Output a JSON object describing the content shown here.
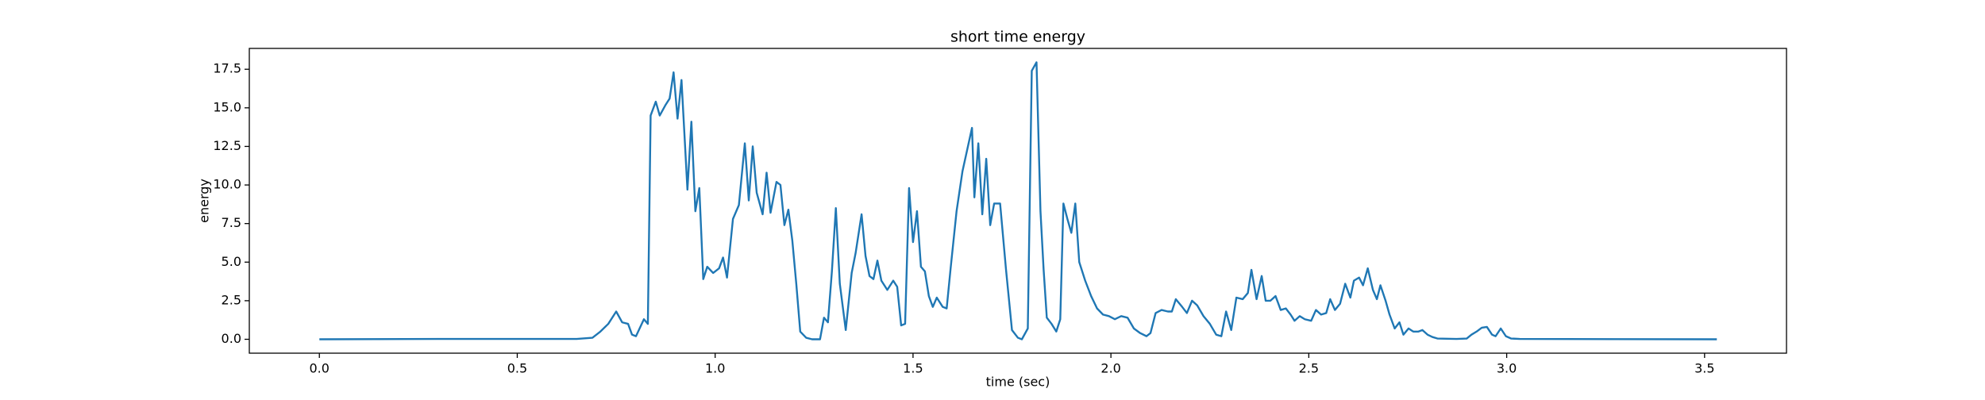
{
  "chart_data": {
    "type": "line",
    "title": "short time energy",
    "x_label": "time (sec)",
    "y_label": "energy",
    "color": "#1f77b4",
    "grid": false,
    "xlim": [
      -0.177,
      3.707
    ],
    "ylim": [
      -0.9,
      18.85
    ],
    "xticks": [
      {
        "value": 0,
        "label": "0.0"
      },
      {
        "value": 0.5,
        "label": "0.5"
      },
      {
        "value": 1,
        "label": "1.0"
      },
      {
        "value": 1.5,
        "label": "1.5"
      },
      {
        "value": 2,
        "label": "2.0"
      },
      {
        "value": 2.5,
        "label": "2.5"
      },
      {
        "value": 3,
        "label": "3.0"
      },
      {
        "value": 3.5,
        "label": "3.5"
      }
    ],
    "yticks": [
      {
        "value": 0,
        "label": "0.0"
      },
      2.5,
      {
        "value": 5,
        "label": "5.0"
      },
      7.5,
      {
        "value": 10,
        "label": "10.0"
      },
      12.5,
      {
        "value": 15,
        "label": "15.0"
      },
      17.5
    ],
    "x": [
      0,
      0.3,
      0.65,
      0.69,
      0.71,
      0.73,
      0.75,
      0.765,
      0.78,
      0.79,
      0.8,
      0.82,
      0.83,
      0.837,
      0.85,
      0.86,
      0.875,
      0.885,
      0.895,
      0.905,
      0.915,
      0.93,
      0.94,
      0.95,
      0.96,
      0.97,
      0.98,
      0.995,
      1.01,
      1.02,
      1.03,
      1.045,
      1.06,
      1.075,
      1.085,
      1.095,
      1.105,
      1.12,
      1.13,
      1.14,
      1.155,
      1.165,
      1.175,
      1.185,
      1.195,
      1.205,
      1.215,
      1.23,
      1.245,
      1.265,
      1.275,
      1.285,
      1.295,
      1.305,
      1.315,
      1.33,
      1.345,
      1.355,
      1.37,
      1.38,
      1.39,
      1.4,
      1.41,
      1.42,
      1.435,
      1.45,
      1.46,
      1.47,
      1.48,
      1.49,
      1.5,
      1.51,
      1.52,
      1.53,
      1.54,
      1.55,
      1.56,
      1.575,
      1.585,
      1.595,
      1.61,
      1.625,
      1.649,
      1.655,
      1.665,
      1.675,
      1.685,
      1.695,
      1.705,
      1.72,
      1.735,
      1.75,
      1.765,
      1.775,
      1.79,
      1.8,
      1.812,
      1.822,
      1.83,
      1.838,
      1.85,
      1.862,
      1.872,
      1.88,
      1.89,
      1.9,
      1.91,
      1.92,
      1.935,
      1.95,
      1.965,
      1.98,
      1.995,
      2.01,
      2.026,
      2.042,
      2.058,
      2.074,
      2.09,
      2.1,
      2.113,
      2.128,
      2.144,
      2.154,
      2.164,
      2.18,
      2.192,
      2.205,
      2.218,
      2.234,
      2.25,
      2.266,
      2.279,
      2.291,
      2.304,
      2.317,
      2.333,
      2.346,
      2.355,
      2.368,
      2.381,
      2.391,
      2.403,
      2.416,
      2.429,
      2.442,
      2.454,
      2.464,
      2.477,
      2.49,
      2.506,
      2.518,
      2.531,
      2.544,
      2.554,
      2.566,
      2.579,
      2.592,
      2.605,
      2.614,
      2.627,
      2.637,
      2.649,
      2.662,
      2.672,
      2.681,
      2.694,
      2.704,
      2.717,
      2.729,
      2.739,
      2.752,
      2.764,
      2.777,
      2.787,
      2.8,
      2.812,
      2.825,
      2.873,
      2.899,
      2.911,
      2.924,
      2.937,
      2.95,
      2.963,
      2.972,
      2.985,
      2.998,
      3.011,
      3.033,
      3.531
    ],
    "values": [
      0,
      0.02,
      0.02,
      0.1,
      0.5,
      1.0,
      1.8,
      1.1,
      1.0,
      0.3,
      0.2,
      1.3,
      1.0,
      14.5,
      15.4,
      14.5,
      15.2,
      15.6,
      17.3,
      14.3,
      16.8,
      9.7,
      14.1,
      8.3,
      9.8,
      3.9,
      4.7,
      4.3,
      4.6,
      5.3,
      4.0,
      7.8,
      8.7,
      12.7,
      9.0,
      12.5,
      9.5,
      8.1,
      10.8,
      8.2,
      10.2,
      10.0,
      7.4,
      8.4,
      6.4,
      3.6,
      0.5,
      0.1,
      0.0,
      0.0,
      1.4,
      1.1,
      4.4,
      8.5,
      3.6,
      0.6,
      4.3,
      5.6,
      8.1,
      5.4,
      4.1,
      3.9,
      5.1,
      3.8,
      3.2,
      3.8,
      3.4,
      0.9,
      1.0,
      9.8,
      6.3,
      8.3,
      4.7,
      4.4,
      2.8,
      2.1,
      2.7,
      2.1,
      2.0,
      4.6,
      8.3,
      10.9,
      13.7,
      9.2,
      12.7,
      8.1,
      11.7,
      7.4,
      8.8,
      8.8,
      4.5,
      0.6,
      0.1,
      0.0,
      0.7,
      17.4,
      17.95,
      8.3,
      4.5,
      1.4,
      1.0,
      0.5,
      1.3,
      8.8,
      7.8,
      6.9,
      8.8,
      5.0,
      3.8,
      2.8,
      2.0,
      1.6,
      1.5,
      1.3,
      1.5,
      1.4,
      0.7,
      0.4,
      0.2,
      0.4,
      1.7,
      1.9,
      1.8,
      1.8,
      2.6,
      2.1,
      1.7,
      2.5,
      2.2,
      1.5,
      1.0,
      0.3,
      0.2,
      1.8,
      0.6,
      2.7,
      2.6,
      3.0,
      4.5,
      2.6,
      4.1,
      2.5,
      2.5,
      2.8,
      1.9,
      2.0,
      1.6,
      1.2,
      1.5,
      1.3,
      1.2,
      1.9,
      1.6,
      1.7,
      2.6,
      1.9,
      2.3,
      3.6,
      2.7,
      3.8,
      4.0,
      3.5,
      4.6,
      3.2,
      2.6,
      3.5,
      2.5,
      1.6,
      0.7,
      1.1,
      0.3,
      0.7,
      0.5,
      0.5,
      0.6,
      0.3,
      0.15,
      0.05,
      0.02,
      0.05,
      0.3,
      0.5,
      0.75,
      0.8,
      0.3,
      0.2,
      0.7,
      0.2,
      0.05,
      0.02,
      0.0
    ]
  }
}
